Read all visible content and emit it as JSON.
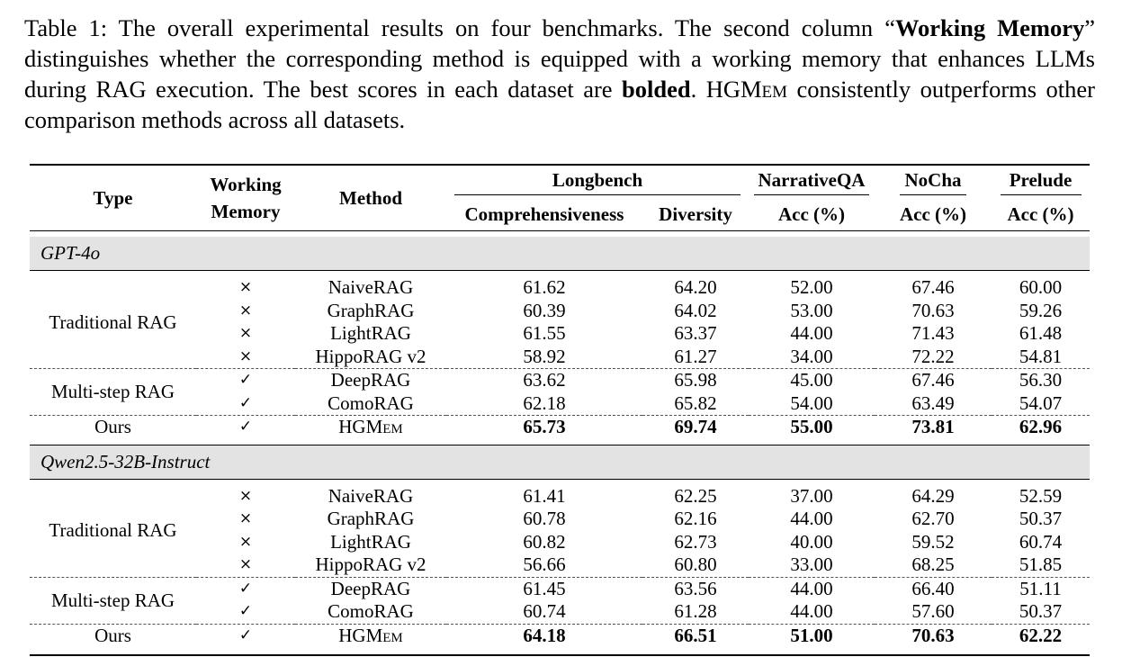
{
  "caption": {
    "parts": [
      {
        "text": "Table 1: The overall experimental results on four benchmarks.  The second column “",
        "style": ""
      },
      {
        "text": "Working Memory",
        "style": "b"
      },
      {
        "text": "” distinguishes whether the corresponding method is equipped with a working memory that enhances LLMs during RAG execution. The best scores in each dataset are ",
        "style": ""
      },
      {
        "text": "bolded",
        "style": "b"
      },
      {
        "text": ". ",
        "style": ""
      },
      {
        "text": "HGMem",
        "style": "sc"
      },
      {
        "text": " consistently outperforms other comparison methods across all datasets.",
        "style": ""
      }
    ]
  },
  "headers": {
    "type": "Type",
    "working_memory_1": "Working",
    "working_memory_2": "Memory",
    "method": "Method",
    "longbench": "Longbench",
    "narrativeqa": "NarrativeQA",
    "nocha": "NoCha",
    "prelude": "Prelude",
    "comprehensiveness": "Comprehensiveness",
    "diversity": "Diversity",
    "acc1": "Acc (%)",
    "acc2": "Acc (%)",
    "acc3": "Acc (%)"
  },
  "marks": {
    "cross": "×",
    "check": "✓"
  },
  "sections": [
    {
      "model": "GPT-4o",
      "groups": [
        {
          "type": "Traditional RAG",
          "rows": [
            {
              "wm": "×",
              "method": "NaiveRAG",
              "values": [
                "61.62",
                "64.20",
                "52.00",
                "67.46",
                "60.00"
              ]
            },
            {
              "wm": "×",
              "method": "GraphRAG",
              "values": [
                "60.39",
                "64.02",
                "53.00",
                "70.63",
                "59.26"
              ]
            },
            {
              "wm": "×",
              "method": "LightRAG",
              "values": [
                "61.55",
                "63.37",
                "44.00",
                "71.43",
                "61.48"
              ]
            },
            {
              "wm": "×",
              "method": "HippoRAG v2",
              "values": [
                "58.92",
                "61.27",
                "34.00",
                "72.22",
                "54.81"
              ]
            }
          ]
        },
        {
          "type": "Multi-step RAG",
          "rows": [
            {
              "wm": "✓",
              "method": "DeepRAG",
              "values": [
                "63.62",
                "65.98",
                "45.00",
                "67.46",
                "56.30"
              ]
            },
            {
              "wm": "✓",
              "method": "ComoRAG",
              "values": [
                "62.18",
                "65.82",
                "54.00",
                "63.49",
                "54.07"
              ]
            }
          ]
        },
        {
          "type": "Ours",
          "best": true,
          "rows": [
            {
              "wm": "✓",
              "method": "HGMem",
              "values": [
                "65.73",
                "69.74",
                "55.00",
                "73.81",
                "62.96"
              ]
            }
          ]
        }
      ]
    },
    {
      "model": "Qwen2.5-32B-Instruct",
      "groups": [
        {
          "type": "Traditional RAG",
          "rows": [
            {
              "wm": "×",
              "method": "NaiveRAG",
              "values": [
                "61.41",
                "62.25",
                "37.00",
                "64.29",
                "52.59"
              ]
            },
            {
              "wm": "×",
              "method": "GraphRAG",
              "values": [
                "60.78",
                "62.16",
                "44.00",
                "62.70",
                "50.37"
              ]
            },
            {
              "wm": "×",
              "method": "LightRAG",
              "values": [
                "60.82",
                "62.73",
                "40.00",
                "59.52",
                "60.74"
              ]
            },
            {
              "wm": "×",
              "method": "HippoRAG v2",
              "values": [
                "56.66",
                "60.80",
                "33.00",
                "68.25",
                "51.85"
              ]
            }
          ]
        },
        {
          "type": "Multi-step RAG",
          "rows": [
            {
              "wm": "✓",
              "method": "DeepRAG",
              "values": [
                "61.45",
                "63.56",
                "44.00",
                "66.40",
                "51.11"
              ]
            },
            {
              "wm": "✓",
              "method": "ComoRAG",
              "values": [
                "60.74",
                "61.28",
                "44.00",
                "57.60",
                "50.37"
              ]
            }
          ]
        },
        {
          "type": "Ours",
          "best": true,
          "rows": [
            {
              "wm": "✓",
              "method": "HGMem",
              "values": [
                "64.18",
                "66.51",
                "51.00",
                "70.63",
                "62.22"
              ]
            }
          ]
        }
      ]
    }
  ]
}
